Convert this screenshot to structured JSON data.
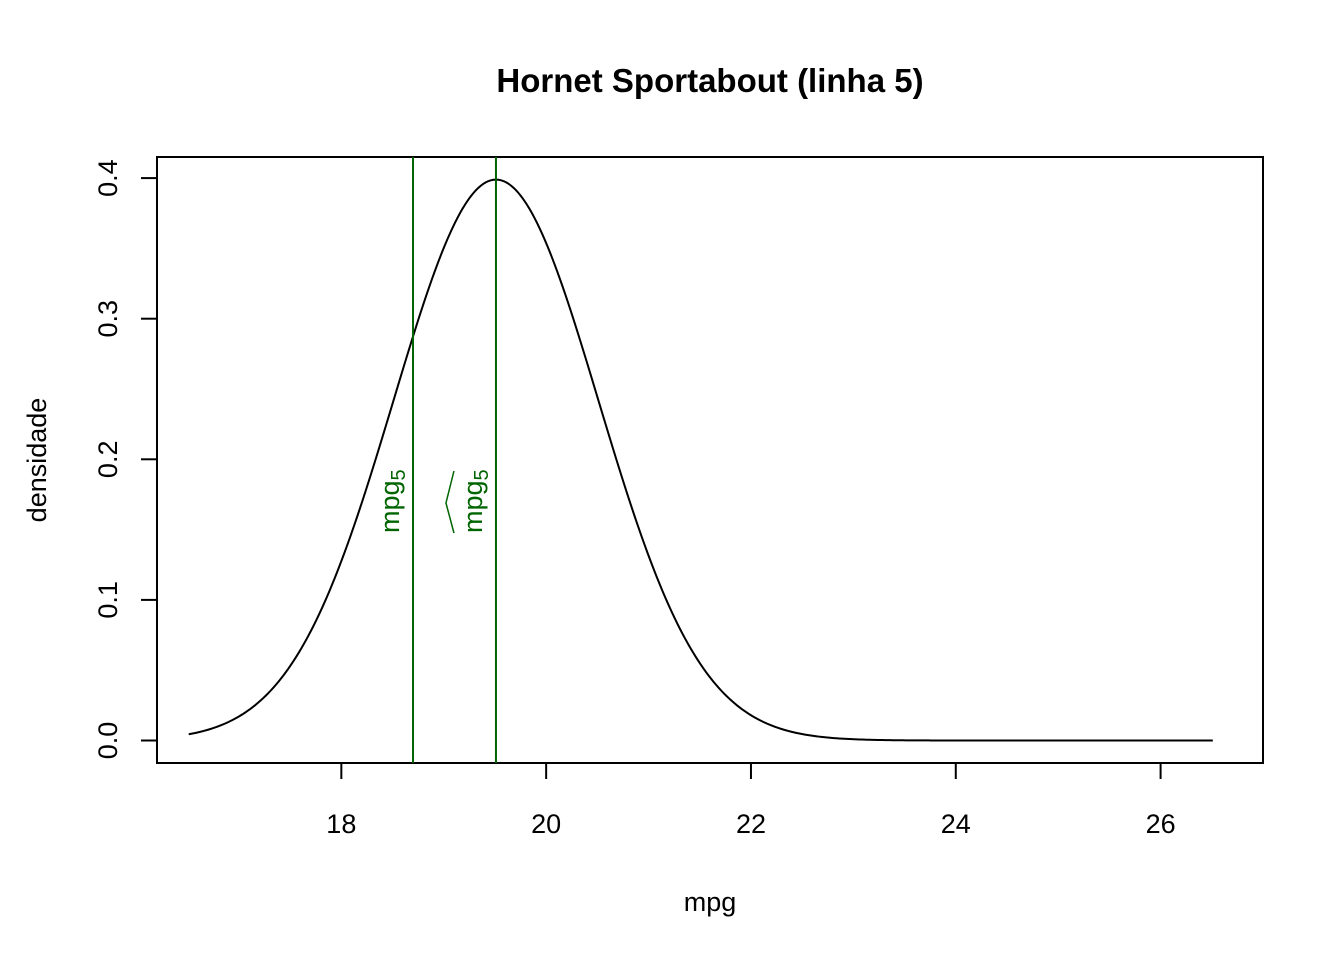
{
  "chart_data": {
    "type": "line",
    "title": "Hornet Sportabout (linha 5)",
    "xlabel": "mpg",
    "ylabel": "densidade",
    "xlim": [
      16.2,
      27.0
    ],
    "ylim": [
      -0.016,
      0.415
    ],
    "x_ticks": [
      18,
      20,
      22,
      24,
      26
    ],
    "x_tick_labels": [
      "18",
      "20",
      "22",
      "24",
      "26"
    ],
    "y_ticks": [
      0.0,
      0.1,
      0.2,
      0.3,
      0.4
    ],
    "y_tick_labels": [
      "0.0",
      "0.1",
      "0.2",
      "0.3",
      "0.4"
    ],
    "grid": false,
    "curve": {
      "description": "normal density",
      "mean": 19.51,
      "sd": 1.0,
      "x_range": [
        16.51,
        26.51
      ],
      "color": "#000000"
    },
    "reference_lines": [
      {
        "x": 18.7,
        "label": "mpg",
        "subscript": "5",
        "hat": false,
        "color": "#006400"
      },
      {
        "x": 19.51,
        "label": "mpg",
        "subscript": "5",
        "hat": true,
        "color": "#006400"
      }
    ]
  }
}
